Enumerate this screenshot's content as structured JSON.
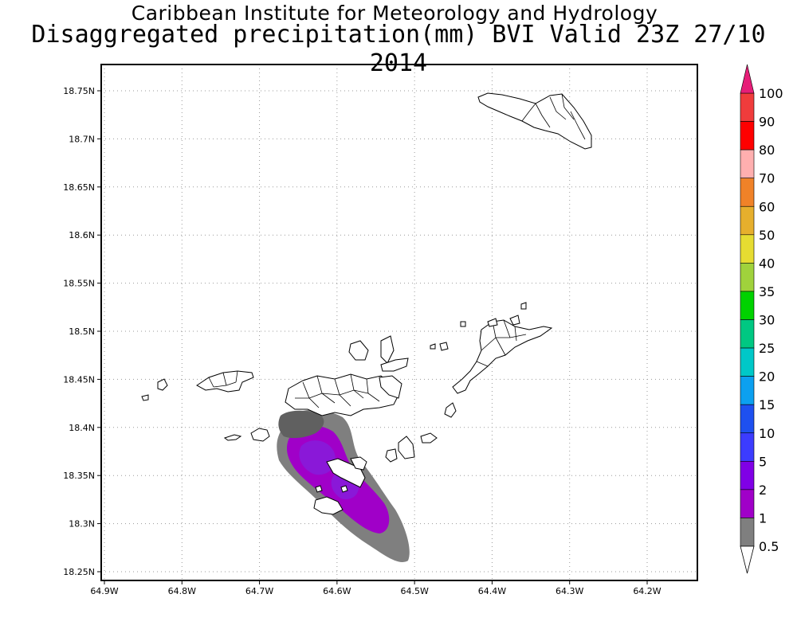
{
  "title": {
    "line1": "Caribbean Institute for Meteorology and Hydrology",
    "line2": "Disaggregated precipitation(mm) BVI Valid 23Z 27/10 2014"
  },
  "map": {
    "lon_range": [
      -64.9,
      -64.15
    ],
    "lat_range": [
      18.24,
      18.79
    ],
    "grid_lines": true,
    "lat_ticks": [
      {
        "value": 18.75,
        "label": "18.75N"
      },
      {
        "value": 18.7,
        "label": "18.7N"
      },
      {
        "value": 18.65,
        "label": "18.65N"
      },
      {
        "value": 18.6,
        "label": "18.6N"
      },
      {
        "value": 18.55,
        "label": "18.55N"
      },
      {
        "value": 18.5,
        "label": "18.5N"
      },
      {
        "value": 18.45,
        "label": "18.45N"
      },
      {
        "value": 18.4,
        "label": "18.4N"
      },
      {
        "value": 18.35,
        "label": "18.35N"
      },
      {
        "value": 18.3,
        "label": "18.3N"
      },
      {
        "value": 18.25,
        "label": "18.25N"
      }
    ],
    "lon_ticks": [
      {
        "value": -64.9,
        "label": "64.9W"
      },
      {
        "value": -64.8,
        "label": "64.8W"
      },
      {
        "value": -64.7,
        "label": "64.7W"
      },
      {
        "value": -64.6,
        "label": "64.6W"
      },
      {
        "value": -64.5,
        "label": "64.5W"
      },
      {
        "value": -64.4,
        "label": "64.4W"
      },
      {
        "value": -64.3,
        "label": "64.3W"
      },
      {
        "value": -64.2,
        "label": "64.2W"
      }
    ],
    "precip_field": [
      {
        "level": "0.5-1 mm",
        "color": "#7f7f7f",
        "centers": [
          [
            -64.625,
            18.375
          ],
          [
            -64.57,
            18.33
          ],
          [
            -64.52,
            18.28
          ]
        ]
      },
      {
        "level": "1-2 mm",
        "color": "#a000c8",
        "centers": [
          [
            -64.61,
            18.37
          ],
          [
            -64.56,
            18.32
          ],
          [
            -64.53,
            18.295
          ]
        ]
      },
      {
        "level": "2-5 mm",
        "color": "#8222de",
        "centers": [
          [
            -64.625,
            18.375
          ],
          [
            -64.585,
            18.34
          ]
        ]
      }
    ]
  },
  "colorbar": {
    "levels": [
      {
        "label": "0.5",
        "color": "#ffffff"
      },
      {
        "label": "1",
        "color": "#7f7f7f"
      },
      {
        "label": "2",
        "color": "#a000c8"
      },
      {
        "label": "5",
        "color": "#8000e6"
      },
      {
        "label": "10",
        "color": "#3c3cff"
      },
      {
        "label": "15",
        "color": "#1e50f0"
      },
      {
        "label": "20",
        "color": "#0ca0f0"
      },
      {
        "label": "25",
        "color": "#00c8c8"
      },
      {
        "label": "30",
        "color": "#00c882"
      },
      {
        "label": "35",
        "color": "#00d200"
      },
      {
        "label": "40",
        "color": "#a0d23c"
      },
      {
        "label": "50",
        "color": "#e6dc32"
      },
      {
        "label": "60",
        "color": "#e6af2d"
      },
      {
        "label": "70",
        "color": "#f08228"
      },
      {
        "label": "80",
        "color": "#ffafaf"
      },
      {
        "label": "90",
        "color": "#ff0000"
      },
      {
        "label": "100",
        "color": "#f03c3c"
      }
    ],
    "overflow_color": "#e61e78"
  }
}
